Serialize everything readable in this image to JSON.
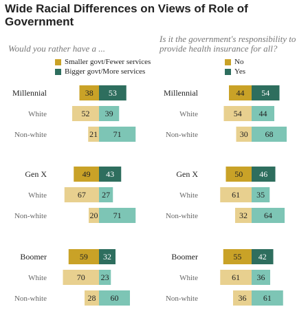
{
  "title": "Wide Racial Differences on Views of Role of Government",
  "colors": {
    "bar_a_dark": "#c9a227",
    "bar_a_light": "#e8d08f",
    "bar_b_dark": "#2e6e5e",
    "bar_b_light": "#7dc5b5"
  },
  "chart_data": [
    {
      "type": "bar",
      "subtitle": "Would you rather have a ...",
      "series": [
        {
          "name": "Smaller govt/Fewer services"
        },
        {
          "name": "Bigger govt/More services"
        }
      ],
      "groups": [
        {
          "rows": [
            {
              "label": "Millennial",
              "values": [
                38,
                53
              ]
            },
            {
              "label": "White",
              "values": [
                52,
                39
              ]
            },
            {
              "label": "Non-white",
              "values": [
                21,
                71
              ]
            }
          ]
        },
        {
          "rows": [
            {
              "label": "Gen X",
              "values": [
                49,
                43
              ]
            },
            {
              "label": "White",
              "values": [
                67,
                27
              ]
            },
            {
              "label": "Non-white",
              "values": [
                20,
                71
              ]
            }
          ]
        },
        {
          "rows": [
            {
              "label": "Boomer",
              "values": [
                59,
                32
              ]
            },
            {
              "label": "White",
              "values": [
                70,
                23
              ]
            },
            {
              "label": "Non-white",
              "values": [
                28,
                60
              ]
            }
          ]
        }
      ]
    },
    {
      "type": "bar",
      "subtitle": "Is it the government's responsibility to provide health insurance for all?",
      "series": [
        {
          "name": "No"
        },
        {
          "name": "Yes"
        }
      ],
      "groups": [
        {
          "rows": [
            {
              "label": "Millennial",
              "values": [
                44,
                54
              ]
            },
            {
              "label": "White",
              "values": [
                54,
                44
              ]
            },
            {
              "label": "Non-white",
              "values": [
                30,
                68
              ]
            }
          ]
        },
        {
          "rows": [
            {
              "label": "Gen X",
              "values": [
                50,
                46
              ]
            },
            {
              "label": "White",
              "values": [
                61,
                35
              ]
            },
            {
              "label": "Non-white",
              "values": [
                32,
                64
              ]
            }
          ]
        },
        {
          "rows": [
            {
              "label": "Boomer",
              "values": [
                55,
                42
              ]
            },
            {
              "label": "White",
              "values": [
                61,
                36
              ]
            },
            {
              "label": "Non-white",
              "values": [
                36,
                61
              ]
            }
          ]
        }
      ]
    }
  ]
}
